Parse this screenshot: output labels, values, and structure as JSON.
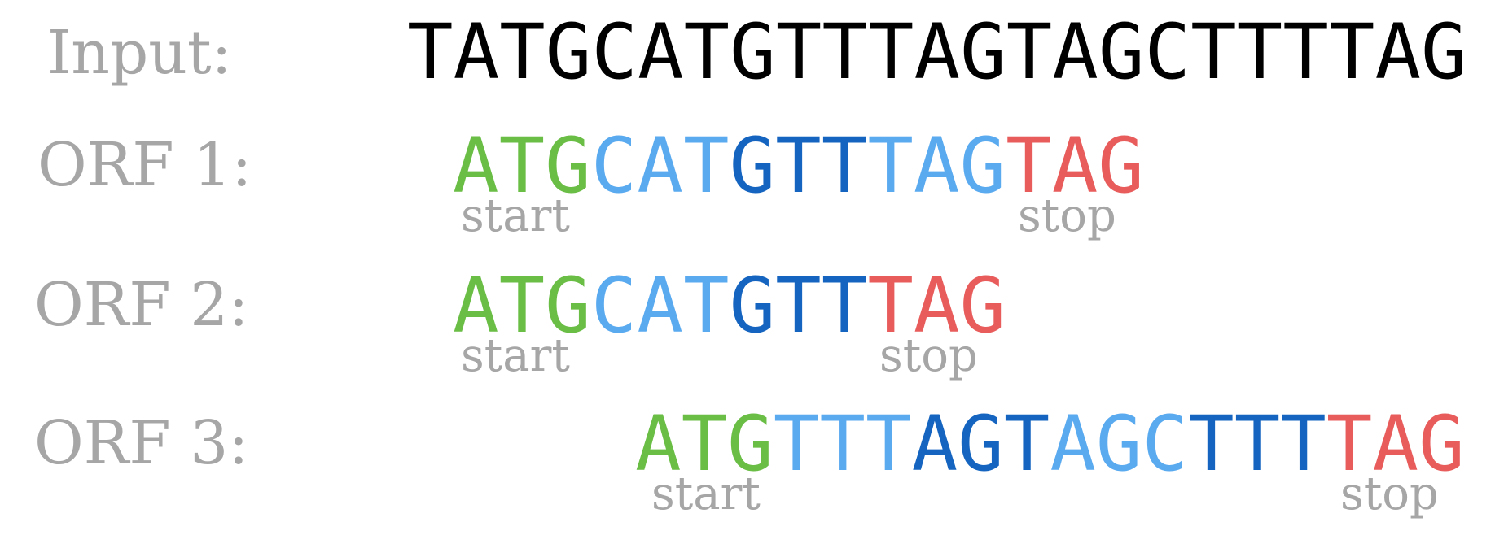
{
  "input": {
    "label": "Input:",
    "sequence": "TATGCATGTTTAGTAGCTTTTAG"
  },
  "orfs": [
    {
      "label": "ORF 1:",
      "segments": [
        {
          "text": "ATG",
          "role": "start"
        },
        {
          "text": "CAT",
          "role": "codon-a"
        },
        {
          "text": "GTT",
          "role": "codon-b"
        },
        {
          "text": "TAG",
          "role": "codon-a"
        },
        {
          "text": "TAG",
          "role": "stop"
        }
      ],
      "start_label": "start",
      "stop_label": "stop"
    },
    {
      "label": "ORF 2:",
      "segments": [
        {
          "text": "ATG",
          "role": "start"
        },
        {
          "text": "CAT",
          "role": "codon-a"
        },
        {
          "text": "GTT",
          "role": "codon-b"
        },
        {
          "text": "TAG",
          "role": "stop"
        }
      ],
      "start_label": "start",
      "stop_label": "stop"
    },
    {
      "label": "ORF 3:",
      "segments": [
        {
          "text": "ATG",
          "role": "start"
        },
        {
          "text": "TTT",
          "role": "codon-a"
        },
        {
          "text": "AGT",
          "role": "codon-b"
        },
        {
          "text": "AGC",
          "role": "codon-a"
        },
        {
          "text": "TTT",
          "role": "codon-b"
        },
        {
          "text": "TAG",
          "role": "stop"
        }
      ],
      "start_label": "start",
      "stop_label": "stop"
    }
  ],
  "colors": {
    "start": "#6abd45",
    "codon-a": "#5aaaf0",
    "codon-b": "#1565c0",
    "stop": "#e85c5c",
    "input": "#000000",
    "label": "#a6a6a6"
  }
}
